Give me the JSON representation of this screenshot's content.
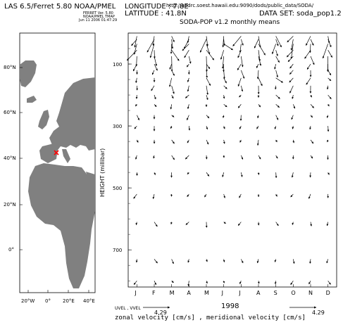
{
  "header": {
    "left_title": "LAS 6.5/Ferret   5.80   NOAA/PMEL",
    "longitude_label": "LONGITUDE : 7.8E",
    "url": "http://apdrc.soest.hawaii.edu:9090/dods/public_data/SODA/",
    "latitude_label": "LATITUDE : 41.8N",
    "dataset_label": "DATA SET: soda_pop1.2",
    "small_lines": [
      "FERRET Ver. 5.80",
      "NOAA/PMEL TMAP",
      "Jun 11 2006 01:47:29"
    ]
  },
  "chart_data": {
    "type": "vector",
    "title": "SODA-POP v1.2 monthly means",
    "xlabel": "1998",
    "ylabel": "HEIGHT (millibar)",
    "categories": [
      "J",
      "F",
      "M",
      "A",
      "M",
      "J",
      "J",
      "A",
      "S",
      "O",
      "N",
      "D"
    ],
    "y_ticks": [
      100,
      300,
      500,
      700
    ],
    "ylim": [
      0,
      820
    ],
    "depth_levels": [
      10,
      20,
      35,
      55,
      75,
      100,
      120,
      145,
      170,
      200,
      230,
      265,
      300,
      345,
      395,
      450,
      520,
      610,
      730,
      800
    ],
    "unit_vector": {
      "label_left": "UVEL , VVEL",
      "value": "4.29",
      "value_right": "4.29"
    },
    "bottom_label": "zonal velocity [cm/s]   , meridional velocity [cm/s]",
    "surface_colour": "#000000"
  },
  "locator_map": {
    "y_ticks": [
      "80°N",
      "60°N",
      "40°N",
      "20°N",
      "0°"
    ],
    "x_ticks": [
      "20°W",
      "0°",
      "20°E",
      "40°E"
    ],
    "land_color": "#808080",
    "marker_color": "#ff0000"
  }
}
